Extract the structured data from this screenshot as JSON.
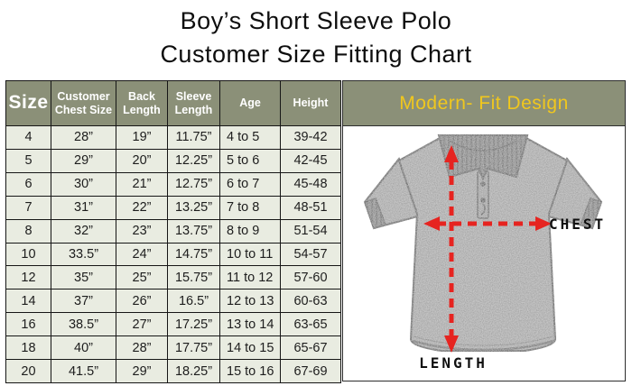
{
  "title": {
    "line1": "Boy’s Short Sleeve Polo",
    "line2": "Customer Size Fitting Chart"
  },
  "table": {
    "headers": [
      "Size",
      "Customer Chest Size",
      "Back Length",
      "Sleeve Length",
      "Age",
      "Height"
    ],
    "rows": [
      [
        "4",
        "28”",
        "19”",
        "11.75”",
        "4 to 5",
        "39-42"
      ],
      [
        "5",
        "29”",
        "20”",
        "12.25”",
        "5 to 6",
        "42-45"
      ],
      [
        "6",
        "30”",
        "21”",
        "12.75”",
        "6 to 7",
        "45-48"
      ],
      [
        "7",
        "31”",
        "22”",
        "13.25”",
        "7 to 8",
        "48-51"
      ],
      [
        "8",
        "32”",
        "23”",
        "13.75”",
        "8 to 9",
        "51-54"
      ],
      [
        "10",
        "33.5”",
        "24”",
        "14.75”",
        "10 to 11",
        "54-57"
      ],
      [
        "12",
        "35”",
        "25”",
        "15.75”",
        "11 to 12",
        "57-60"
      ],
      [
        "14",
        "37”",
        "26”",
        "16.5”",
        "12 to 13",
        "60-63"
      ],
      [
        "16",
        "38.5”",
        "27”",
        "17.25”",
        "13 to 14",
        "63-65"
      ],
      [
        "18",
        "40”",
        "28”",
        "17.75”",
        "14 to 15",
        "65-67"
      ],
      [
        "20",
        "41.5”",
        "29”",
        "18.25”",
        "15 to 16",
        "67-69"
      ]
    ]
  },
  "panel": {
    "header": "Modern- Fit Design",
    "chest_label": "CHEST",
    "length_label": "LENGTH"
  },
  "colors": {
    "sage_header": "#8b9078",
    "row_background": "#e9ece1",
    "accent_yellow": "#f0c71e",
    "arrow_red": "#e62420",
    "shirt_gray": "#969696",
    "collar_gray": "#6e6e6e"
  }
}
